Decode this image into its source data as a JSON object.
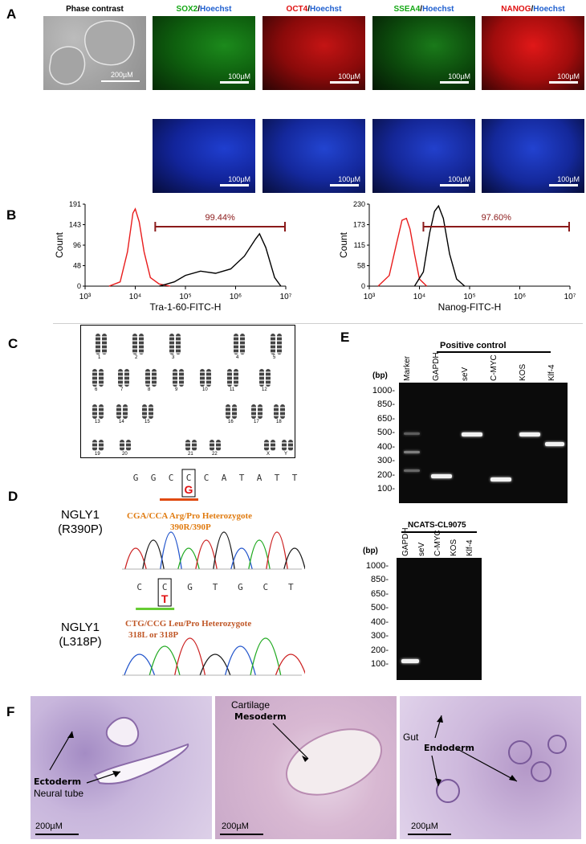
{
  "panelA": {
    "label": "A",
    "headers": [
      {
        "text": "Phase contrast",
        "parts": [
          {
            "t": "Phase contrast",
            "c": "k"
          }
        ]
      },
      {
        "parts": [
          {
            "t": "SOX2",
            "c": "g"
          },
          {
            "t": "/",
            "c": "k"
          },
          {
            "t": "Hoechst",
            "c": "b"
          }
        ]
      },
      {
        "parts": [
          {
            "t": "OCT4",
            "c": "r"
          },
          {
            "t": "/",
            "c": "k"
          },
          {
            "t": "Hoechst",
            "c": "b"
          }
        ]
      },
      {
        "parts": [
          {
            "t": "SSEA4",
            "c": "g"
          },
          {
            "t": "/",
            "c": "k"
          },
          {
            "t": "Hoechst",
            "c": "b"
          }
        ]
      },
      {
        "parts": [
          {
            "t": "NANOG",
            "c": "r"
          },
          {
            "t": "/",
            "c": "k"
          },
          {
            "t": "Hoechst",
            "c": "b"
          }
        ]
      }
    ],
    "scale_phase": "200µM",
    "scale_fluor": "100µM"
  },
  "panelB": {
    "label": "B",
    "chart_data": [
      {
        "type": "line",
        "xlabel": "Tra-1-60-FITC-H",
        "ylabel": "Count",
        "x_log": true,
        "xlim": [
          1000,
          10000000
        ],
        "ylim": [
          0,
          191
        ],
        "x_ticks": [
          "10³",
          "10⁴",
          "10⁵",
          "10⁶",
          "10⁷"
        ],
        "y_ticks": [
          "191",
          "143",
          "96",
          "48",
          "0"
        ],
        "gate_label": "99.44%",
        "gate_range": [
          25000,
          10000000
        ],
        "series": [
          {
            "color": "#e81c1c",
            "x": [
              3000,
              5000,
              7000,
              9000,
              10000,
              12000,
              15000,
              20000,
              30000,
              50000
            ],
            "y": [
              0,
              10,
              80,
              170,
              180,
              150,
              80,
              20,
              5,
              0
            ]
          },
          {
            "color": "#000000",
            "x": [
              30000,
              60000,
              100000,
              200000,
              400000,
              800000,
              1500000,
              2500000,
              3000000,
              4000000,
              6000000,
              8000000
            ],
            "y": [
              0,
              10,
              25,
              35,
              30,
              40,
              70,
              110,
              122,
              90,
              20,
              0
            ]
          }
        ]
      },
      {
        "type": "line",
        "xlabel": "Nanog-FITC-H",
        "ylabel": "Count",
        "x_log": true,
        "xlim": [
          1000,
          10000000
        ],
        "ylim": [
          0,
          230
        ],
        "x_ticks": [
          "10³",
          "10⁴",
          "10⁵",
          "10⁶",
          "10⁷"
        ],
        "y_ticks": [
          "230",
          "173",
          "115",
          "58",
          "0"
        ],
        "gate_label": "97.60%",
        "gate_range": [
          12000,
          10000000
        ],
        "series": [
          {
            "color": "#e81c1c",
            "x": [
              1500,
              2500,
              3500,
              4500,
              5500,
              6500,
              8000,
              10000,
              14000
            ],
            "y": [
              0,
              30,
              120,
              185,
              190,
              160,
              90,
              20,
              0
            ]
          },
          {
            "color": "#000000",
            "x": [
              8000,
              12000,
              16000,
              20000,
              24000,
              30000,
              40000,
              55000,
              80000
            ],
            "y": [
              0,
              40,
              150,
              210,
              225,
              190,
              90,
              20,
              0
            ]
          }
        ]
      }
    ]
  },
  "panelC": {
    "label": "C",
    "rows": [
      [
        "1",
        "2",
        "3",
        "",
        "4",
        "5"
      ],
      [
        "6",
        "7",
        "8",
        "9",
        "10",
        "11",
        "12"
      ],
      [
        "13",
        "14",
        "15",
        "",
        "16",
        "17",
        "18"
      ],
      [
        "19",
        "20",
        "21",
        "22",
        "X",
        "Y"
      ]
    ]
  },
  "panelD": {
    "label": "D",
    "seq1": {
      "gene": "NGLY1",
      "mutation": "(R390P)",
      "bases": [
        "G",
        "G",
        "C",
        "C",
        "C",
        "A",
        "T",
        "A",
        "T",
        "T"
      ],
      "alt": "G",
      "desc1": "CGA/CCA Arg/Pro Heterozygote",
      "desc2": "390R/390P"
    },
    "seq2": {
      "gene": "NGLY1",
      "mutation": "(L318P)",
      "bases": [
        "C",
        "C",
        "G",
        "T",
        "G",
        "C",
        "T"
      ],
      "alt": "T",
      "desc1": "CTG/CCG Leu/Pro Heterozygote",
      "desc2": "318L or 318P"
    }
  },
  "panelE": {
    "label": "E",
    "gel1": {
      "title": "Positive control",
      "bp_label": "(bp)",
      "ladder": [
        "1000-",
        "850-",
        "650-",
        "500-",
        "400-",
        "300-",
        "200-",
        "100-"
      ],
      "lanes": [
        "Marker",
        "GAPDH",
        "seV",
        "C-MYC",
        "KOS",
        "Klf-4"
      ]
    },
    "gel2": {
      "title": "NCATS-CL9075",
      "bp_label": "(bp)",
      "ladder": [
        "1000-",
        "850-",
        "650-",
        "500-",
        "400-",
        "300-",
        "200-",
        "100-"
      ],
      "lanes": [
        "GAPDH",
        "seV",
        "C-MYC",
        "KOS",
        "Klf-4"
      ]
    }
  },
  "panelF": {
    "label": "F",
    "images": [
      {
        "labels": [
          {
            "t": "Ectoderm",
            "bold": true
          },
          {
            "t": "Neural tube",
            "bold": false
          }
        ],
        "scale": "200µM"
      },
      {
        "labels": [
          {
            "t": "Cartilage",
            "bold": false
          },
          {
            "t": "Mesoderm",
            "bold": true
          }
        ],
        "scale": "200µM"
      },
      {
        "labels": [
          {
            "t": "Gut",
            "bold": false
          },
          {
            "t": "Endoderm",
            "bold": true
          }
        ],
        "scale": "200µM"
      }
    ]
  }
}
